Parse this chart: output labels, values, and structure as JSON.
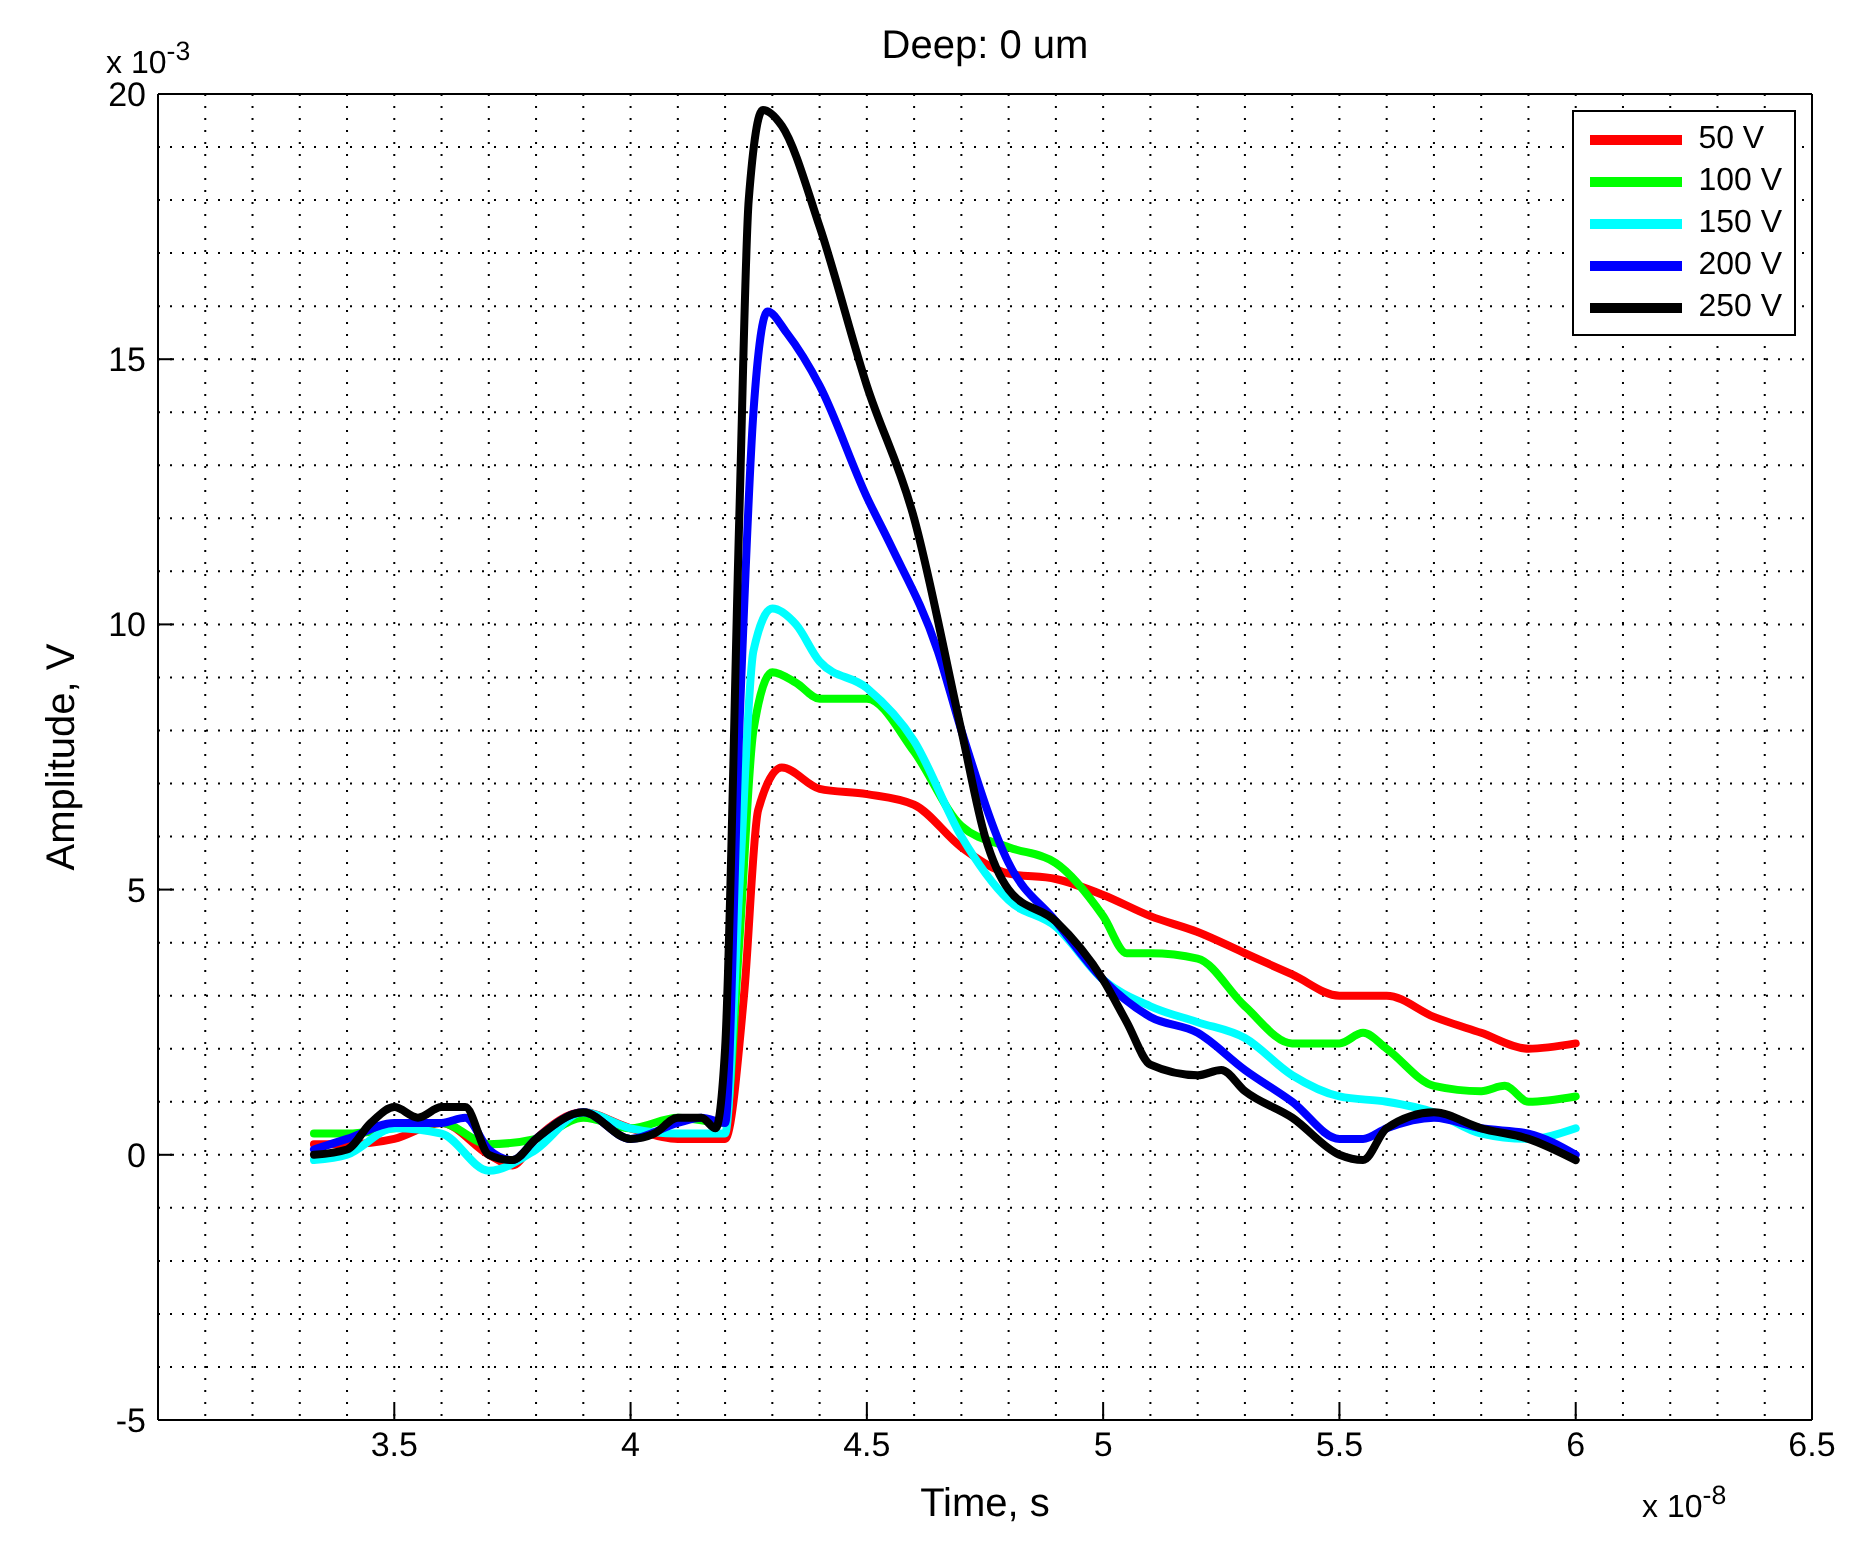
{
  "chart_data": {
    "type": "line",
    "title": "Deep: 0 um",
    "xlabel": "Time, s",
    "ylabel": "Amplitude, V",
    "annotations": [
      "x 10$^{-3}$",
      "x 10$^{-8}$"
    ],
    "xlim": [
      3,
      6.5
    ],
    "xticks": [
      {
        "value": 3,
        "label": null
      },
      3.5,
      4,
      4.5,
      5,
      5.5,
      6,
      6.5
    ],
    "ylim": [
      -5,
      20
    ],
    "yticks": [
      -5,
      0,
      5,
      10,
      15,
      20
    ],
    "grid": true,
    "legend": "top right",
    "line_style": "solid",
    "marker": "none",
    "series": [
      {
        "name": "50 V",
        "color": "#ff0000",
        "x": [
          3.33,
          3.4,
          3.5,
          3.6,
          3.7,
          3.75,
          3.8,
          3.9,
          4.0,
          4.1,
          4.2,
          4.24,
          4.27,
          4.32,
          4.4,
          4.5,
          4.6,
          4.7,
          4.8,
          4.9,
          5.0,
          5.1,
          5.2,
          5.3,
          5.4,
          5.5,
          5.6,
          5.7,
          5.8,
          5.9,
          6.0
        ],
        "values": [
          0.2,
          0.2,
          0.3,
          0.6,
          0,
          -0.2,
          0.3,
          0.8,
          0.5,
          0.3,
          0.3,
          3,
          6.5,
          7.3,
          6.9,
          6.8,
          6.6,
          5.8,
          5.3,
          5.2,
          4.9,
          4.5,
          4.2,
          3.8,
          3.4,
          3,
          3,
          2.6,
          2.3,
          2,
          2.1
        ]
      },
      {
        "name": "100 V",
        "color": "#00ff00",
        "x": [
          3.33,
          3.4,
          3.5,
          3.6,
          3.7,
          3.8,
          3.9,
          4.0,
          4.1,
          4.2,
          4.23,
          4.26,
          4.3,
          4.35,
          4.4,
          4.5,
          4.6,
          4.7,
          4.8,
          4.9,
          5.0,
          5.05,
          5.1,
          5.2,
          5.3,
          5.4,
          5.5,
          5.55,
          5.6,
          5.7,
          5.8,
          5.85,
          5.9,
          6.0
        ],
        "values": [
          0.4,
          0.4,
          0.5,
          0.6,
          0.2,
          0.3,
          0.7,
          0.5,
          0.7,
          0.6,
          4,
          8,
          9.1,
          8.9,
          8.6,
          8.6,
          7.6,
          6.2,
          5.8,
          5.5,
          4.5,
          3.8,
          3.8,
          3.7,
          2.8,
          2.1,
          2.1,
          2.3,
          2,
          1.3,
          1.2,
          1.3,
          1,
          1.1
        ]
      },
      {
        "name": "150 V",
        "color": "#00ffff",
        "x": [
          3.33,
          3.4,
          3.5,
          3.6,
          3.7,
          3.8,
          3.9,
          4.0,
          4.1,
          4.15,
          4.2,
          4.23,
          4.26,
          4.3,
          4.35,
          4.4,
          4.5,
          4.6,
          4.7,
          4.8,
          4.9,
          5.0,
          5.1,
          5.2,
          5.3,
          5.4,
          5.5,
          5.6,
          5.7,
          5.8,
          5.9,
          6.0
        ],
        "values": [
          -0.1,
          0,
          0.5,
          0.4,
          -0.3,
          0.1,
          0.8,
          0.5,
          0.4,
          0.4,
          0.4,
          5,
          9.5,
          10.3,
          10,
          9.3,
          8.8,
          7.8,
          6,
          4.8,
          4.3,
          3.3,
          2.8,
          2.5,
          2.2,
          1.5,
          1.1,
          1,
          0.8,
          0.4,
          0.3,
          0.5
        ]
      },
      {
        "name": "200 V",
        "color": "#0000ff",
        "x": [
          3.33,
          3.4,
          3.5,
          3.6,
          3.65,
          3.7,
          3.75,
          3.8,
          3.9,
          4.0,
          4.1,
          4.15,
          4.2,
          4.23,
          4.26,
          4.29,
          4.33,
          4.4,
          4.5,
          4.55,
          4.65,
          4.7,
          4.8,
          4.9,
          5.0,
          5.1,
          5.2,
          5.3,
          5.4,
          5.5,
          5.55,
          5.6,
          5.7,
          5.8,
          5.9,
          6.0
        ],
        "values": [
          0.1,
          0.3,
          0.6,
          0.6,
          0.7,
          0.1,
          -0.1,
          0.3,
          0.8,
          0.3,
          0.6,
          0.7,
          0.6,
          8,
          14,
          15.9,
          15.5,
          14.5,
          12.4,
          11.5,
          9.5,
          8,
          5.5,
          4.4,
          3.3,
          2.6,
          2.3,
          1.6,
          1,
          0.3,
          0.3,
          0.5,
          0.7,
          0.5,
          0.4,
          0
        ]
      },
      {
        "name": "250 V",
        "color": "#000000",
        "x": [
          3.33,
          3.4,
          3.45,
          3.5,
          3.55,
          3.6,
          3.65,
          3.7,
          3.75,
          3.8,
          3.9,
          4.0,
          4.05,
          4.1,
          4.15,
          4.18,
          4.2,
          4.23,
          4.25,
          4.28,
          4.32,
          4.4,
          4.5,
          4.6,
          4.7,
          4.75,
          4.8,
          4.9,
          5.0,
          5.05,
          5.1,
          5.2,
          5.25,
          5.3,
          5.4,
          5.5,
          5.55,
          5.6,
          5.7,
          5.8,
          5.9,
          6.0
        ],
        "values": [
          0,
          0.1,
          0.6,
          0.9,
          0.7,
          0.9,
          0.9,
          0,
          -0.1,
          0.3,
          0.8,
          0.3,
          0.4,
          0.7,
          0.7,
          0.5,
          2,
          12,
          18,
          19.7,
          19.4,
          17.5,
          14.5,
          12,
          8,
          6,
          5,
          4.4,
          3.3,
          2.5,
          1.7,
          1.5,
          1.6,
          1.2,
          0.7,
          0,
          -0.1,
          0.5,
          0.8,
          0.5,
          0.3,
          -0.1
        ]
      }
    ]
  }
}
